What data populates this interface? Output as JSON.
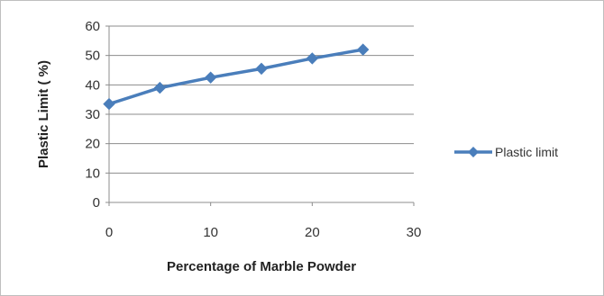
{
  "chart_data": {
    "type": "line",
    "title": "",
    "xlabel": "Percentage of Marble Powder",
    "ylabel": "Plastic Limit ( %)",
    "x": [
      0,
      5,
      10,
      15,
      20,
      25
    ],
    "series": [
      {
        "name": "Plastic limit",
        "values": [
          33.5,
          39,
          42.5,
          45.5,
          49,
          52
        ],
        "color": "#4a7ebb"
      }
    ],
    "xlim": [
      0,
      30
    ],
    "ylim": [
      0,
      60
    ],
    "xticks": [
      0,
      10,
      20,
      30
    ],
    "yticks": [
      0,
      10,
      20,
      30,
      40,
      50,
      60
    ],
    "grid": "horizontal",
    "legend_position": "right",
    "marker": "diamond"
  }
}
